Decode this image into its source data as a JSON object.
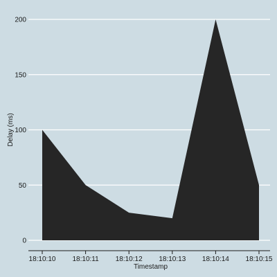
{
  "chart_data": {
    "type": "area",
    "xlabel": "Timestamp",
    "ylabel": "Delay (ms)",
    "categories": [
      "18:10:10",
      "18:10:11",
      "18:10:12",
      "18:10:13",
      "18:10:14",
      "18:10:15"
    ],
    "values": [
      100,
      50,
      25,
      20,
      200,
      50
    ],
    "yticks": [
      0,
      50,
      100,
      150,
      200
    ],
    "ylim": [
      0,
      200
    ],
    "grid": true,
    "colors": {
      "background": "#cddce3",
      "fill": "#262626",
      "grid": "#ffffff",
      "axis": "#1a1a1a"
    }
  }
}
